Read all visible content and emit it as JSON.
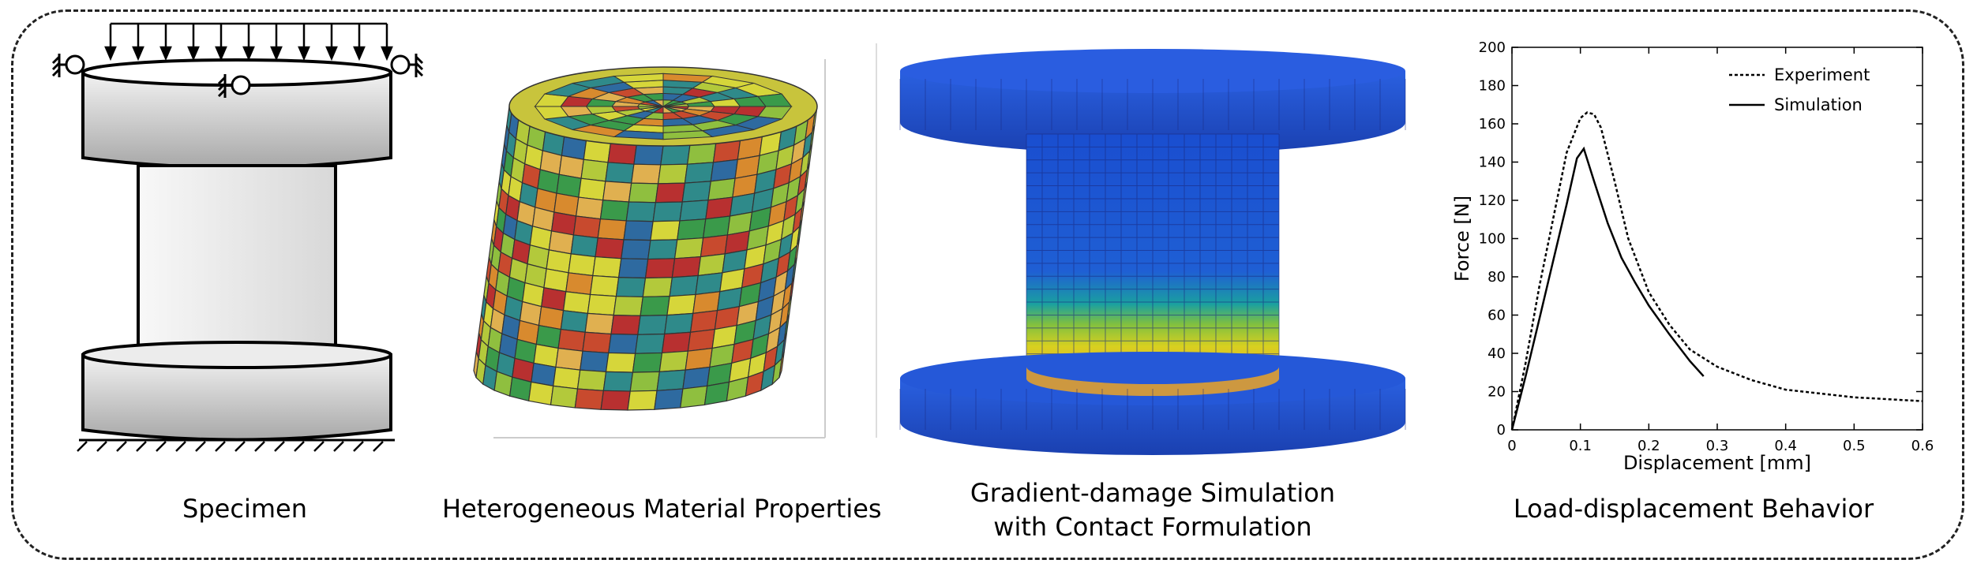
{
  "panels": {
    "specimen": {
      "caption": "Specimen"
    },
    "heterogeneous": {
      "caption": "Heterogeneous Material Properties"
    },
    "simulation": {
      "caption_line1": "Gradient-damage Simulation",
      "caption_line2": "with Contact Formulation"
    },
    "behavior": {
      "caption": "Load-displacement Behavior"
    }
  },
  "mesh_colors": [
    "#d6d63a",
    "#b3c93b",
    "#8fbf3f",
    "#3a9a4a",
    "#2f8a8a",
    "#2e6aa0",
    "#d88a2e",
    "#c84a2e",
    "#b83030",
    "#e0b050"
  ],
  "chart_data": {
    "type": "line",
    "xlabel": "Displacement [mm]",
    "ylabel": "Force [N]",
    "xlim": [
      0,
      0.6
    ],
    "ylim": [
      0,
      200
    ],
    "xticks": [
      "0",
      "0.1",
      "0.2",
      "0.3",
      "0.4",
      "0.5",
      "0.6"
    ],
    "yticks": [
      "0",
      "20",
      "40",
      "60",
      "80",
      "100",
      "120",
      "140",
      "160",
      "180",
      "200"
    ],
    "legend_position": "top-right",
    "series": [
      {
        "name": "Experiment",
        "style": "dashed",
        "x": [
          0,
          0.02,
          0.04,
          0.06,
          0.08,
          0.1,
          0.11,
          0.12,
          0.13,
          0.15,
          0.17,
          0.2,
          0.23,
          0.26,
          0.3,
          0.35,
          0.4,
          0.45,
          0.5,
          0.55,
          0.6
        ],
        "y": [
          0,
          35,
          75,
          110,
          145,
          163,
          166,
          165,
          158,
          130,
          100,
          72,
          55,
          42,
          33,
          26,
          21,
          19,
          17,
          16,
          15
        ]
      },
      {
        "name": "Simulation",
        "style": "solid",
        "x": [
          0,
          0.02,
          0.04,
          0.06,
          0.08,
          0.095,
          0.105,
          0.12,
          0.14,
          0.16,
          0.18,
          0.2,
          0.23,
          0.26,
          0.28
        ],
        "y": [
          0,
          28,
          58,
          88,
          118,
          142,
          147,
          130,
          108,
          90,
          77,
          65,
          50,
          36,
          28
        ]
      }
    ]
  }
}
